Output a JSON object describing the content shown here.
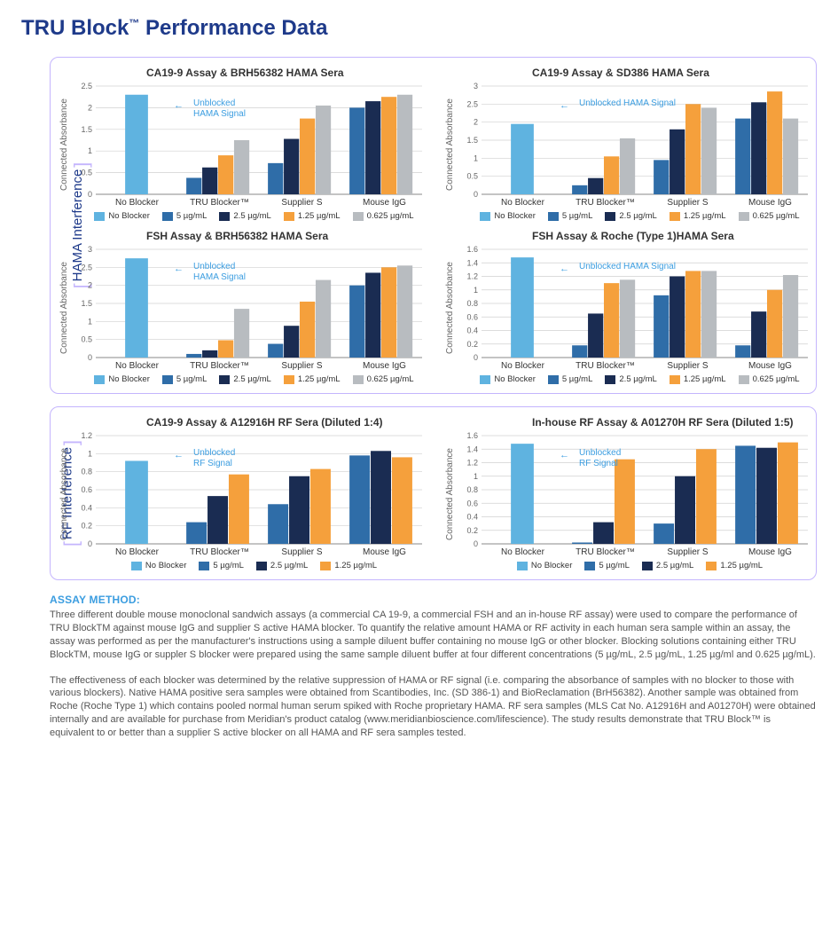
{
  "colors": {
    "no_blocker": "#5fb3e0",
    "c5": "#2f6da8",
    "c25": "#1a2c52",
    "c125": "#f5a03c",
    "c0625": "#b8bcc0",
    "grid": "#d0d0d0",
    "axis": "#888888",
    "annotation": "#3b9de0",
    "panel_border": "#c4b5fd",
    "heading": "#1e3a8a"
  },
  "page_title_main": "TRU Block",
  "page_title_tm": "™",
  "page_title_rest": " Performance Data",
  "yaxis_label": "Connected Absorbance",
  "categories4": [
    "No Blocker",
    "TRU Blocker™",
    "Supplier S",
    "Mouse IgG"
  ],
  "legend5": {
    "no_blocker": "No Blocker",
    "c5": "5 µg/mL",
    "c25": "2.5 µg/mL",
    "c125": "1.25 µg/mL",
    "c0625": "0.625 µg/mL"
  },
  "legend4": {
    "no_blocker": "No Blocker",
    "c5": "5 µg/mL",
    "c25": "2.5 µg/mL",
    "c125": "1.25 µg/mL"
  },
  "sections": {
    "hama": {
      "label": "HAMA Interference"
    },
    "rf": {
      "label": "RF Interference"
    }
  },
  "charts": {
    "hama_tl": {
      "title": "CA19-9 Assay & BRH56382 HAMA Sera",
      "ymax": 2.5,
      "ystep": 0.5,
      "annotation": "Unblocked\nHAMA Signal",
      "groups": [
        {
          "no_blocker": 2.3
        },
        {
          "c5": 0.38,
          "c25": 0.62,
          "c125": 0.9,
          "c0625": 1.25
        },
        {
          "c5": 0.72,
          "c25": 1.28,
          "c125": 1.75,
          "c0625": 2.05
        },
        {
          "c5": 2.0,
          "c25": 2.15,
          "c125": 2.25,
          "c0625": 2.3
        }
      ]
    },
    "hama_tr": {
      "title": "CA19-9 Assay & SD386 HAMA Sera",
      "ymax": 3.0,
      "ystep": 0.5,
      "annotation": "Unblocked HAMA Signal",
      "groups": [
        {
          "no_blocker": 1.95
        },
        {
          "c5": 0.25,
          "c25": 0.45,
          "c125": 1.05,
          "c0625": 1.55
        },
        {
          "c5": 0.95,
          "c25": 1.8,
          "c125": 2.5,
          "c0625": 2.4
        },
        {
          "c5": 2.1,
          "c25": 2.55,
          "c125": 2.85,
          "c0625": 2.1
        }
      ]
    },
    "hama_bl": {
      "title": "FSH Assay & BRH56382 HAMA Sera",
      "ymax": 3.0,
      "ystep": 0.5,
      "annotation": "Unblocked\nHAMA Signal",
      "groups": [
        {
          "no_blocker": 2.75
        },
        {
          "c5": 0.1,
          "c25": 0.2,
          "c125": 0.48,
          "c0625": 1.35
        },
        {
          "c5": 0.38,
          "c25": 0.88,
          "c125": 1.55,
          "c0625": 2.15
        },
        {
          "c5": 2.0,
          "c25": 2.35,
          "c125": 2.5,
          "c0625": 2.55
        }
      ]
    },
    "hama_br": {
      "title": "FSH Assay & Roche (Type 1)HAMA Sera",
      "ymax": 1.6,
      "ystep": 0.2,
      "annotation": "Unblocked HAMA Signal",
      "groups": [
        {
          "no_blocker": 1.48
        },
        {
          "c5": 0.18,
          "c25": 0.65,
          "c125": 1.1,
          "c0625": 1.15
        },
        {
          "c5": 0.92,
          "c25": 1.2,
          "c125": 1.28,
          "c0625": 1.28
        },
        {
          "c5": 0.18,
          "c25": 0.68,
          "c125": 1.0,
          "c0625": 1.22
        }
      ]
    },
    "rf_l": {
      "title": "CA19-9 Assay & A12916H RF Sera (Diluted 1:4)",
      "ymax": 1.2,
      "ystep": 0.2,
      "annotation": "Unblocked\nRF Signal",
      "groups": [
        {
          "no_blocker": 0.92
        },
        {
          "c5": 0.24,
          "c25": 0.53,
          "c125": 0.77
        },
        {
          "c5": 0.44,
          "c25": 0.75,
          "c125": 0.83
        },
        {
          "c5": 0.95,
          "c25": 1.01,
          "c125": 0.98
        },
        {
          "c5": 0.98,
          "c25": 1.03,
          "c125": 0.96
        }
      ],
      "categories": [
        "No Blocker",
        "TRU Blocker™",
        "Supplier S",
        "Supplier S",
        "Mouse IgG"
      ],
      "us_two_supplier_s": true
    },
    "rf_r": {
      "title": "In-house RF Assay & A01270H RF Sera (Diluted 1:5)",
      "ymax": 1.6,
      "ystep": 0.2,
      "annotation": "Unblocked\nRF Signal",
      "groups": [
        {
          "no_blocker": 1.48
        },
        {
          "c5": 0.02,
          "c25": 0.32,
          "c125": 1.25
        },
        {
          "c5": 0.3,
          "c25": 1.0,
          "c125": 1.4
        },
        {
          "c5": 1.45,
          "c25": 1.42,
          "c125": 1.5
        }
      ]
    }
  },
  "method_heading": "ASSAY METHOD:",
  "method_p1": "Three different double mouse monoclonal sandwich assays (a commercial CA 19-9, a commercial FSH and an in-house RF assay) were used to compare the performance of TRU BlockTM against mouse IgG and supplier S active HAMA blocker. To quantify the relative amount HAMA or RF activity in each human sera sample within an assay, the assay was performed as per the manufacturer's instructions using a sample diluent buffer containing no mouse IgG or other blocker. Blocking solutions containing either TRU BlockTM, mouse IgG or suppler S blocker were prepared using the same sample diluent buffer at four different concentrations (5 µg/mL, 2.5 µg/mL, 1.25 µg/ml and 0.625 µg/mL).",
  "method_p2": "The effectiveness of each blocker was determined by the relative suppression of HAMA or RF signal (i.e. comparing the absorbance of samples with no blocker to those with various blockers). Native HAMA positive sera samples were obtained from Scantibodies, Inc. (SD 386-1) and BioReclamation (BrH56382). Another sample was obtained from Roche (Roche Type 1) which contains pooled normal human serum spiked with Roche proprietary HAMA. RF sera samples (MLS Cat No. A12916H and A01270H) were obtained internally and are available for purchase from Meridian's product catalog (www.meridianbioscience.com/lifescience). The study results demonstrate that TRU Block™ is equivalent to or better than a supplier S active blocker on all HAMA and RF sera samples tested."
}
